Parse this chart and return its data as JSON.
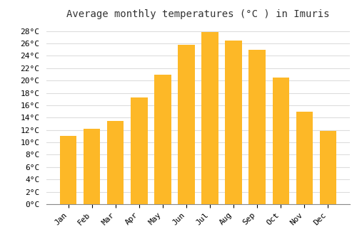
{
  "title": "Average monthly temperatures (°C ) in Imuris",
  "months": [
    "Jan",
    "Feb",
    "Mar",
    "Apr",
    "May",
    "Jun",
    "Jul",
    "Aug",
    "Sep",
    "Oct",
    "Nov",
    "Dec"
  ],
  "values": [
    11,
    12.2,
    13.5,
    17.3,
    21,
    25.8,
    27.9,
    26.5,
    25,
    20.5,
    15,
    11.8
  ],
  "bar_color_top": "#FDB827",
  "bar_color_bottom": "#F5A010",
  "background_color": "#FFFFFF",
  "grid_color": "#DDDDDD",
  "ylim": [
    0,
    29
  ],
  "yticks": [
    0,
    2,
    4,
    6,
    8,
    10,
    12,
    14,
    16,
    18,
    20,
    22,
    24,
    26,
    28
  ],
  "title_fontsize": 10,
  "tick_fontsize": 8,
  "font_family": "monospace"
}
